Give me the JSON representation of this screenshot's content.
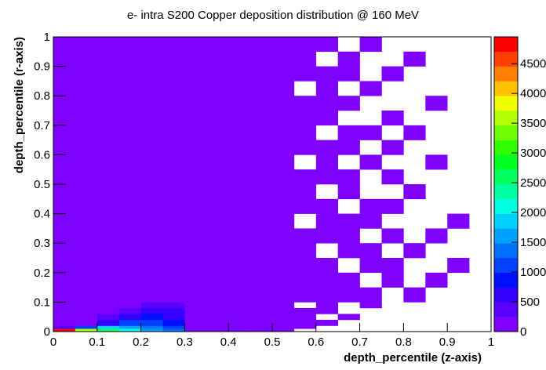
{
  "chart_data": {
    "type": "heatmap",
    "title": "e- intra S200 Copper deposition distribution @ 160 MeV",
    "x_label": "depth_percentile (z-axis)",
    "y_label": "depth_percentile (r-axis)",
    "xbins": [
      0,
      0.05,
      0.1,
      0.15,
      0.2,
      0.25,
      0.3,
      0.35,
      0.4,
      0.45,
      0.5,
      0.55,
      0.6,
      0.65,
      0.7,
      0.75,
      0.8,
      0.85,
      0.9,
      0.95,
      1
    ],
    "ybins": [
      0,
      0.01,
      0.02,
      0.04,
      0.06,
      0.08,
      0.1,
      0.15,
      0.2,
      0.25,
      0.3,
      0.35,
      0.4,
      0.45,
      0.5,
      0.55,
      0.6,
      0.65,
      0.7,
      0.75,
      0.8,
      0.85,
      0.9,
      0.95,
      1
    ],
    "z": [
      [
        4800,
        3600,
        2600,
        2000,
        1700,
        1400,
        30,
        5,
        2,
        1,
        1,
        0,
        0,
        0,
        0,
        0,
        0,
        0,
        0,
        0
      ],
      [
        300,
        1000,
        1800,
        1600,
        1300,
        1100,
        20,
        4,
        2,
        1,
        1,
        1,
        0,
        0,
        0,
        0,
        0,
        0,
        0,
        0
      ],
      [
        150,
        200,
        700,
        1200,
        1000,
        900,
        20,
        4,
        2,
        1,
        1,
        1,
        1,
        0,
        0,
        0,
        0,
        0,
        0,
        0
      ],
      [
        130,
        150,
        250,
        600,
        800,
        700,
        15,
        4,
        2,
        1,
        1,
        1,
        0,
        1,
        0,
        0,
        0,
        0,
        0,
        0
      ],
      [
        120,
        130,
        160,
        300,
        500,
        550,
        12,
        3,
        2,
        1,
        1,
        1,
        1,
        0,
        0,
        0,
        0,
        0,
        0,
        0
      ],
      [
        110,
        120,
        130,
        180,
        300,
        400,
        10,
        3,
        2,
        1,
        1,
        0,
        1,
        0,
        1,
        0,
        0,
        0,
        0,
        0
      ],
      [
        100,
        100,
        100,
        110,
        120,
        100,
        8,
        3,
        2,
        1,
        1,
        1,
        1,
        1,
        1,
        0,
        1,
        0,
        0,
        0
      ],
      [
        100,
        100,
        100,
        100,
        100,
        100,
        8,
        3,
        2,
        1,
        1,
        1,
        1,
        1,
        0,
        1,
        0,
        1,
        0,
        0
      ],
      [
        100,
        100,
        100,
        100,
        100,
        90,
        7,
        3,
        2,
        1,
        1,
        1,
        1,
        0,
        1,
        1,
        0,
        0,
        1,
        0
      ],
      [
        100,
        100,
        100,
        100,
        100,
        90,
        7,
        3,
        2,
        1,
        1,
        1,
        0,
        1,
        1,
        0,
        1,
        0,
        0,
        0
      ],
      [
        100,
        100,
        100,
        100,
        100,
        90,
        6,
        3,
        2,
        1,
        1,
        1,
        1,
        1,
        0,
        1,
        0,
        1,
        0,
        0
      ],
      [
        100,
        100,
        100,
        100,
        100,
        90,
        6,
        3,
        2,
        1,
        1,
        0,
        1,
        1,
        1,
        0,
        0,
        0,
        1,
        0
      ],
      [
        100,
        100,
        100,
        100,
        100,
        80,
        6,
        3,
        2,
        1,
        1,
        1,
        1,
        0,
        1,
        1,
        0,
        0,
        0,
        0
      ],
      [
        100,
        100,
        100,
        100,
        100,
        80,
        5,
        3,
        2,
        1,
        1,
        1,
        0,
        1,
        0,
        0,
        1,
        0,
        0,
        0
      ],
      [
        100,
        100,
        100,
        100,
        100,
        80,
        5,
        3,
        2,
        1,
        1,
        1,
        1,
        1,
        0,
        1,
        0,
        0,
        0,
        0
      ],
      [
        100,
        100,
        100,
        100,
        100,
        80,
        5,
        3,
        2,
        1,
        1,
        0,
        1,
        0,
        1,
        0,
        0,
        1,
        0,
        0
      ],
      [
        100,
        100,
        100,
        100,
        90,
        80,
        5,
        3,
        2,
        1,
        1,
        1,
        1,
        1,
        0,
        1,
        0,
        0,
        0,
        0
      ],
      [
        100,
        100,
        100,
        100,
        90,
        70,
        5,
        3,
        2,
        1,
        1,
        1,
        0,
        1,
        1,
        0,
        1,
        0,
        0,
        0
      ],
      [
        100,
        100,
        100,
        100,
        90,
        70,
        4,
        3,
        2,
        1,
        1,
        1,
        1,
        0,
        0,
        1,
        0,
        0,
        0,
        0
      ],
      [
        100,
        100,
        100,
        90,
        90,
        70,
        4,
        3,
        2,
        1,
        1,
        1,
        1,
        1,
        0,
        0,
        0,
        1,
        0,
        0
      ],
      [
        100,
        100,
        100,
        90,
        90,
        70,
        4,
        3,
        2,
        1,
        1,
        0,
        1,
        0,
        1,
        0,
        0,
        0,
        0,
        0
      ],
      [
        100,
        100,
        100,
        90,
        90,
        60,
        4,
        3,
        2,
        1,
        1,
        1,
        1,
        1,
        0,
        1,
        0,
        0,
        0,
        0
      ],
      [
        100,
        100,
        90,
        90,
        80,
        60,
        4,
        2,
        2,
        1,
        1,
        1,
        0,
        1,
        0,
        0,
        1,
        0,
        0,
        0
      ],
      [
        90,
        90,
        90,
        90,
        80,
        60,
        3,
        2,
        1,
        1,
        1,
        1,
        1,
        0,
        1,
        0,
        0,
        0,
        0,
        0
      ]
    ],
    "xlim": [
      0,
      1
    ],
    "ylim": [
      0,
      1
    ],
    "xticks": [
      0,
      0.1,
      0.2,
      0.3,
      0.4,
      0.5,
      0.6,
      0.7,
      0.8,
      0.9,
      1
    ],
    "yticks": [
      0,
      0.1,
      0.2,
      0.3,
      0.4,
      0.5,
      0.6,
      0.7,
      0.8,
      0.9,
      1
    ],
    "zlim": [
      0,
      4950
    ],
    "zticks": [
      0,
      500,
      1000,
      1500,
      2000,
      2500,
      3000,
      3500,
      4000,
      4500
    ],
    "palette": [
      "#7f00ff",
      "#5a00ff",
      "#3200ff",
      "#0010ff",
      "#0040ff",
      "#0070ff",
      "#00a0ff",
      "#00d0ff",
      "#00ffe0",
      "#00ffa0",
      "#00ff60",
      "#00ff20",
      "#30ff00",
      "#70ff00",
      "#b0ff00",
      "#f0ff00",
      "#ffc000",
      "#ff8000",
      "#ff4000",
      "#ff0000"
    ]
  }
}
